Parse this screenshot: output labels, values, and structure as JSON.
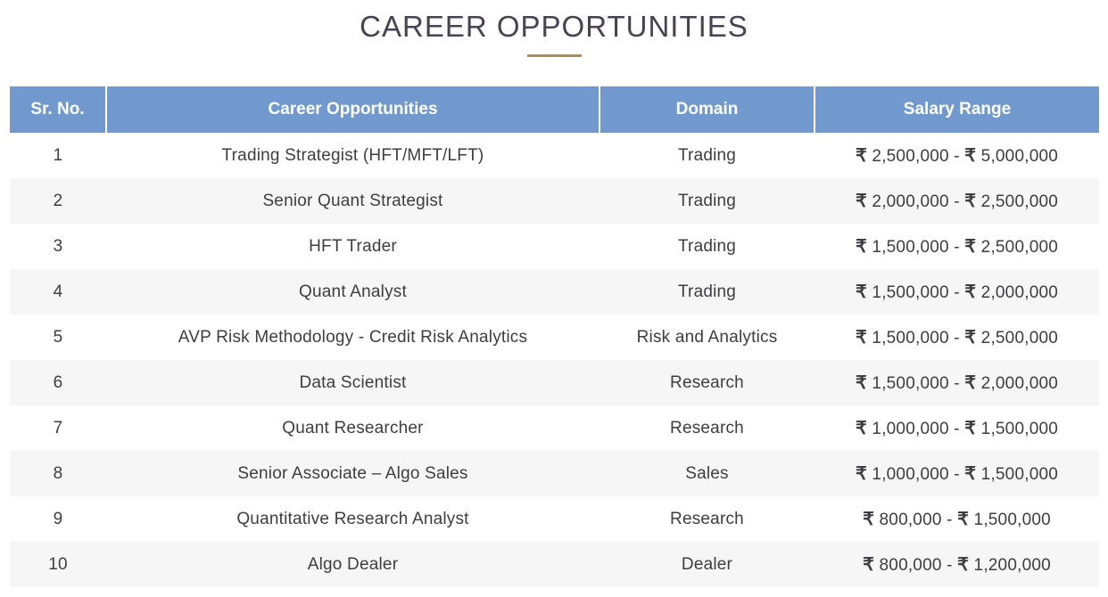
{
  "page": {
    "title": "CAREER OPPORTUNITIES"
  },
  "table": {
    "headers": [
      "Sr. No.",
      "Career Opportunities",
      "Domain",
      "Salary Range"
    ],
    "currency_symbol": "₹",
    "rows": [
      {
        "sr": "1",
        "role": "Trading Strategist (HFT/MFT/LFT)",
        "domain": "Trading",
        "salary_min": "2,500,000",
        "salary_max": "5,000,000"
      },
      {
        "sr": "2",
        "role": "Senior Quant Strategist",
        "domain": "Trading",
        "salary_min": "2,000,000",
        "salary_max": "2,500,000"
      },
      {
        "sr": "3",
        "role": "HFT Trader",
        "domain": "Trading",
        "salary_min": "1,500,000",
        "salary_max": "2,500,000"
      },
      {
        "sr": "4",
        "role": "Quant Analyst",
        "domain": "Trading",
        "salary_min": "1,500,000",
        "salary_max": "2,000,000"
      },
      {
        "sr": "5",
        "role": "AVP Risk Methodology - Credit Risk Analytics",
        "domain": "Risk and Analytics",
        "salary_min": "1,500,000",
        "salary_max": "2,500,000"
      },
      {
        "sr": "6",
        "role": "Data Scientist",
        "domain": "Research",
        "salary_min": "1,500,000",
        "salary_max": "2,000,000"
      },
      {
        "sr": "7",
        "role": "Quant Researcher",
        "domain": "Research",
        "salary_min": "1,000,000",
        "salary_max": "1,500,000"
      },
      {
        "sr": "8",
        "role": "Senior Associate – Algo Sales",
        "domain": "Sales",
        "salary_min": "1,000,000",
        "salary_max": "1,500,000"
      },
      {
        "sr": "9",
        "role": "Quantitative Research Analyst",
        "domain": "Research",
        "salary_min": "800,000",
        "salary_max": "1,500,000"
      },
      {
        "sr": "10",
        "role": "Algo Dealer",
        "domain": "Dealer",
        "salary_min": "800,000",
        "salary_max": "1,200,000"
      }
    ]
  },
  "colors": {
    "header_bg": "#7299ce",
    "accent_underline": "#b08b5b",
    "row_alt_bg": "#f6f6f6"
  }
}
